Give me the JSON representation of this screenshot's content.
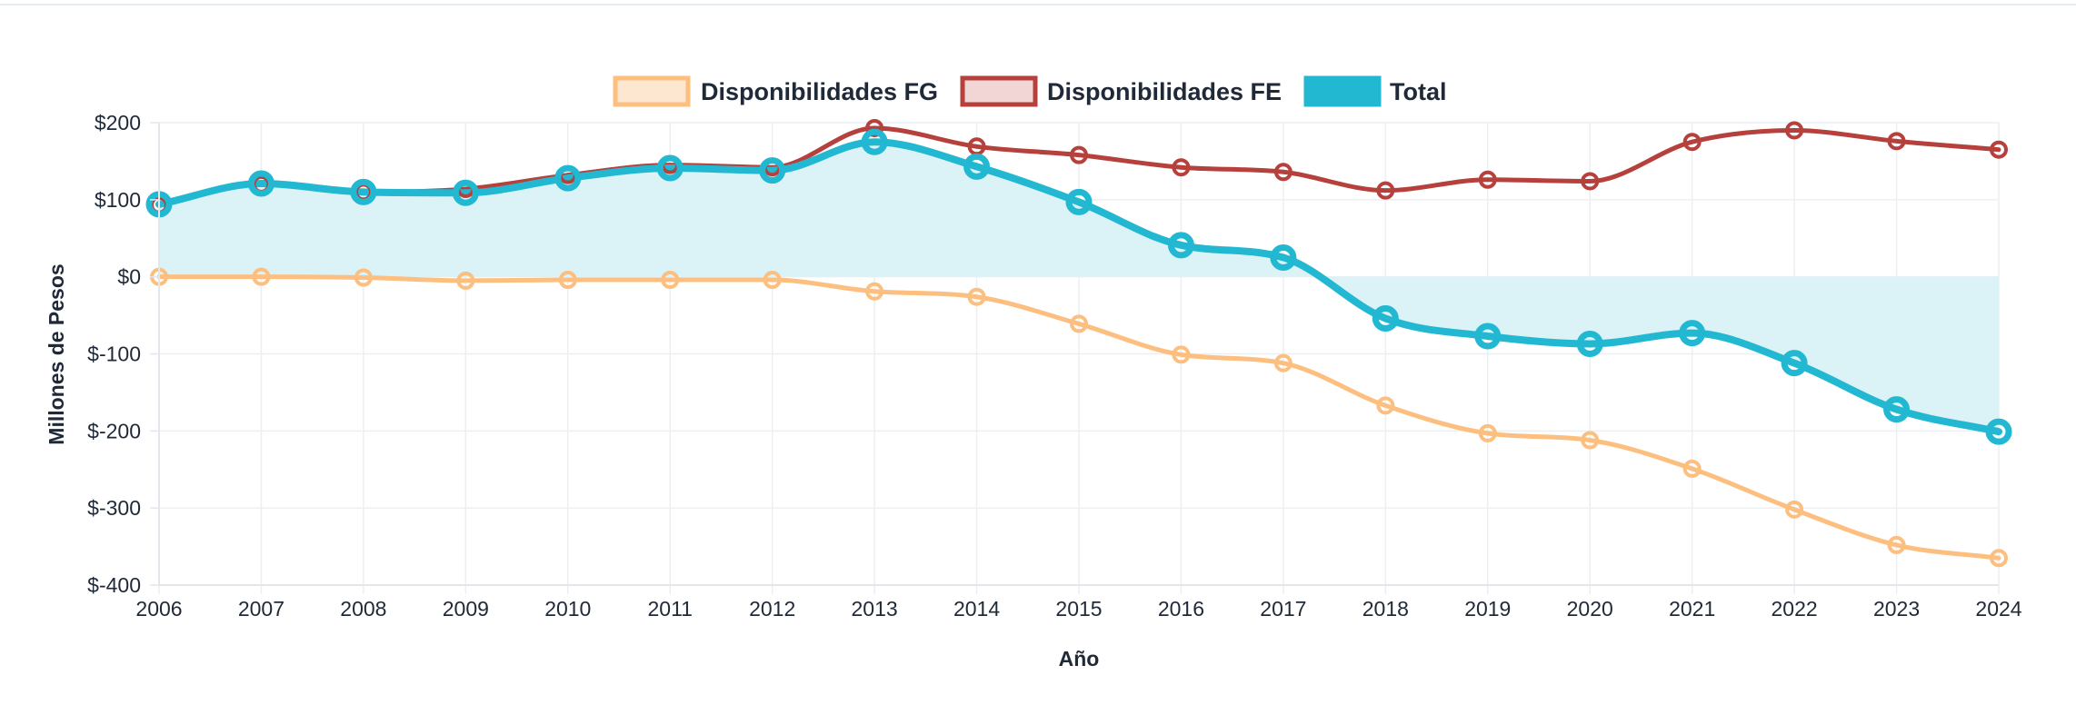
{
  "chart_data": {
    "type": "line",
    "title": "",
    "xlabel": "Año",
    "ylabel": "Millones de Pesos",
    "x": [
      "2006",
      "2007",
      "2008",
      "2009",
      "2010",
      "2011",
      "2012",
      "2013",
      "2014",
      "2015",
      "2016",
      "2017",
      "2018",
      "2019",
      "2020",
      "2021",
      "2022",
      "2023",
      "2024"
    ],
    "ylim": [
      -400,
      200
    ],
    "yticks": [
      200,
      100,
      0,
      -100,
      -200,
      -300,
      -400
    ],
    "ytick_labels": [
      "$200",
      "$100",
      "$0",
      "$-100",
      "$-200",
      "$-300",
      "$-400"
    ],
    "grid": true,
    "legend_position": "top-center",
    "series": [
      {
        "name": "Disponibilidades FG",
        "color": "#fcbf7f",
        "fill": false,
        "values": [
          0,
          0,
          -1,
          -5,
          -4,
          -4,
          -4,
          -19,
          -26,
          -61,
          -101,
          -112,
          -167,
          -203,
          -212,
          -249,
          -302,
          -348,
          -365
        ]
      },
      {
        "name": "Disponibilidades FE",
        "color": "#b5403c",
        "fill": false,
        "values": [
          93,
          120,
          110,
          114,
          132,
          145,
          142,
          193,
          169,
          158,
          142,
          136,
          112,
          126,
          124,
          175,
          190,
          176,
          165
        ]
      },
      {
        "name": "Total",
        "color": "#22b8d1",
        "fill": true,
        "fill_color": "#dbf2f6",
        "values": [
          94,
          121,
          110,
          109,
          128,
          141,
          138,
          175,
          143,
          97,
          41,
          25,
          -54,
          -77,
          -87,
          -73,
          -112,
          -172,
          -201
        ]
      }
    ]
  }
}
